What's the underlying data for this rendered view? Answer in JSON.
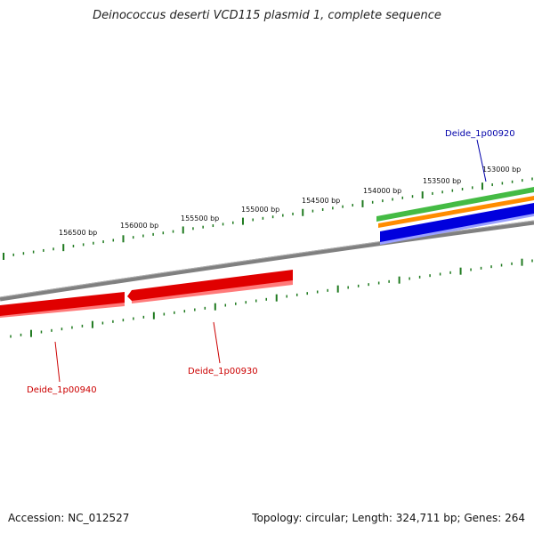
{
  "title": "Deinococcus deserti VCD115 plasmid 1, complete sequence",
  "footer": {
    "accession": "Accession: NC_012527",
    "summary": "Topology: circular; Length: 324,711 bp; Genes: 264"
  },
  "colors": {
    "backbone": "#808080",
    "tick": "#1f7a1f",
    "forward_gene": "#e00000",
    "forward_gene_shadow": "#ff7a7a",
    "reverse_gene": "#0000dd",
    "reverse_gene_shadow": "#9aa0ff",
    "track_green": "#44bb44",
    "track_orange": "#ff8c00",
    "label_red": "#cc0000",
    "label_blue": "#0000aa"
  },
  "ruler": {
    "labels": [
      "153000 bp",
      "153500 bp",
      "154000 bp",
      "154500 bp",
      "155000 bp",
      "155500 bp",
      "156000 bp",
      "156500 bp"
    ]
  },
  "gene_labels": {
    "top": "Deide_1p00920",
    "gene_930": "Deide_1p00930",
    "gene_940": "Deide_1p00940"
  }
}
